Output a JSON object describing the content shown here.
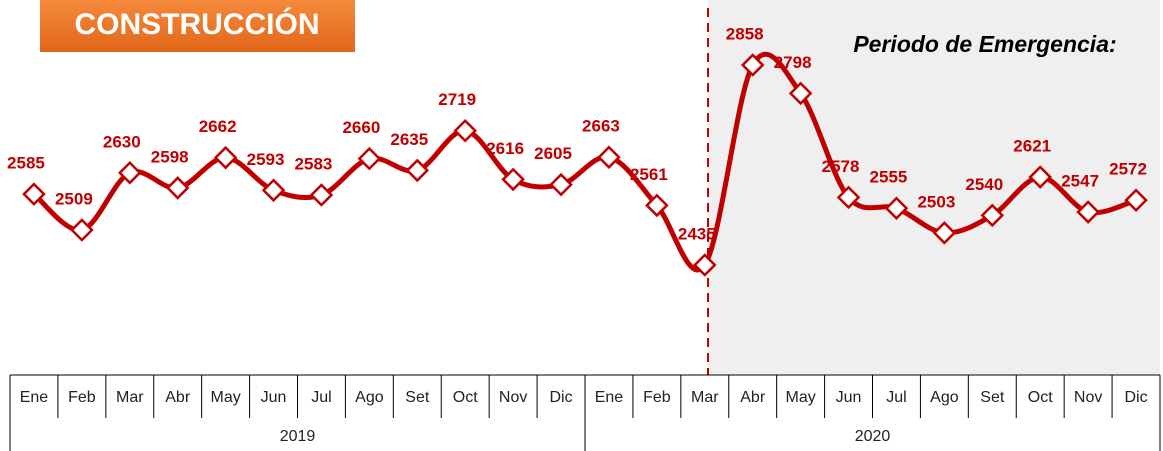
{
  "chart_data": {
    "type": "line",
    "title": "CONSTRUCCIÓN",
    "annotation": "Periodo de Emergencia:",
    "categories": [
      "Ene",
      "Feb",
      "Mar",
      "Abr",
      "May",
      "Jun",
      "Jul",
      "Ago",
      "Set",
      "Oct",
      "Nov",
      "Dic",
      "Ene",
      "Feb",
      "Mar",
      "Abr",
      "May",
      "Jun",
      "Jul",
      "Ago",
      "Set",
      "Oct",
      "Nov",
      "Dic"
    ],
    "groups": [
      "2019",
      "2020"
    ],
    "values": [
      2585,
      2509,
      2630,
      2598,
      2662,
      2593,
      2583,
      2660,
      2635,
      2719,
      2616,
      2605,
      2663,
      2561,
      2435,
      2858,
      2798,
      2578,
      2555,
      2503,
      2540,
      2621,
      2547,
      2572
    ],
    "color": "#c00000"
  }
}
